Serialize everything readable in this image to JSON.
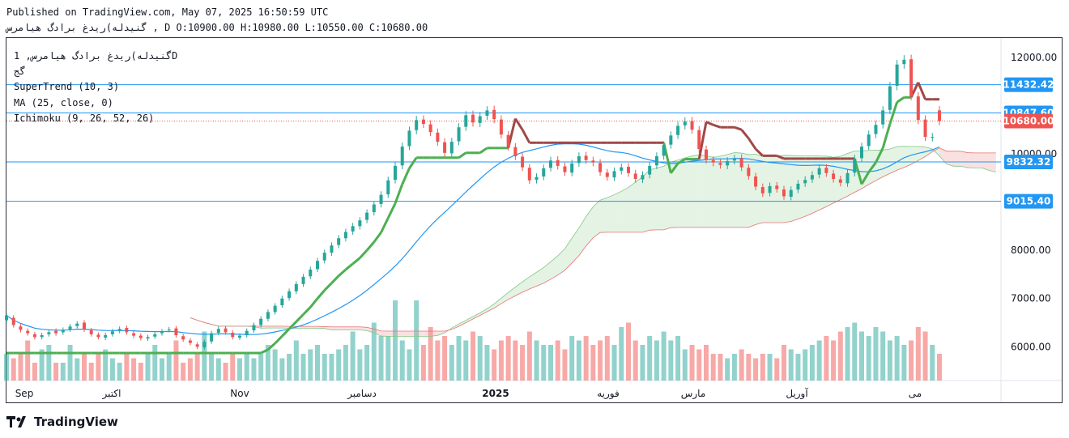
{
  "header": {
    "line1": "Published on TradingView.com, May 07, 2025 16:50:59 UTC",
    "line2": "گنیدله)ریدغ برادگ هیامرس , D O:10900.00 H:10980.00 L:10550.00 C:10680.00"
  },
  "legend": {
    "symbol": "گنیدله)ریدغ برادگ هیامرس, 1D",
    "symbol_sub": "گج",
    "supertrend": "SuperTrend (10, 3)",
    "ma": "MA (25, close, 0)",
    "ichimoku": "Ichimoku (9, 26, 52, 26)"
  },
  "brand": {
    "name": "TradingView"
  },
  "colors": {
    "up": "#26a69a",
    "down": "#ef5350",
    "st_up": "#4caf50",
    "st_down": "#a04848",
    "ma": "#2196f3",
    "hline": "#2196f3",
    "cloud_green": "#a5d6a7",
    "cloud_red": "#ef9a9a"
  },
  "chart_data": {
    "type": "candlestick",
    "title": "",
    "ylim": [
      5300,
      12400
    ],
    "y_ticks": [
      "12000.00",
      "10000.00",
      "8000.00",
      "7000.00",
      "6000.00"
    ],
    "x_ticks": [
      "Sep",
      "اکتبر",
      "Nov",
      "دسامبر",
      "2025",
      "فوریه",
      "مارس",
      "آوریل",
      "می"
    ],
    "horizontal_lines": [
      11432.42,
      10847.6,
      9832.32,
      9015.4
    ],
    "price_labels": [
      {
        "text": "11432.42",
        "value": 11432.42,
        "color": "#2196f3"
      },
      {
        "text": "10847.60",
        "value": 10847.6,
        "color": "#2196f3"
      },
      {
        "text": "10680.00",
        "value": 10680.0,
        "color": "#ef5350"
      },
      {
        "text": "9832.32",
        "value": 9832.32,
        "color": "#2196f3"
      },
      {
        "text": "9015.40",
        "value": 9015.4,
        "color": "#2196f3"
      }
    ],
    "close_line": 10680.0,
    "closes": [
      6650,
      6450,
      6350,
      6280,
      6200,
      6240,
      6300,
      6280,
      6350,
      6420,
      6480,
      6360,
      6260,
      6200,
      6240,
      6320,
      6370,
      6300,
      6230,
      6180,
      6200,
      6260,
      6320,
      6360,
      6240,
      6150,
      6080,
      6000,
      6100,
      6280,
      6370,
      6300,
      6200,
      6230,
      6330,
      6450,
      6580,
      6720,
      6850,
      7000,
      7150,
      7300,
      7450,
      7600,
      7780,
      7950,
      8100,
      8250,
      8380,
      8500,
      8620,
      8780,
      8950,
      9150,
      9450,
      9750,
      10150,
      10480,
      10700,
      10620,
      10450,
      10250,
      10020,
      10250,
      10550,
      10800,
      10650,
      10780,
      10900,
      10720,
      10400,
      10150,
      9950,
      9720,
      9450,
      9520,
      9700,
      9860,
      9750,
      9620,
      9800,
      9950,
      9870,
      9820,
      9620,
      9520,
      9640,
      9720,
      9600,
      9480,
      9560,
      9750,
      9950,
      10180,
      10380,
      10580,
      10670,
      10500,
      10100,
      9880,
      9820,
      9770,
      9850,
      9900,
      9720,
      9540,
      9320,
      9180,
      9330,
      9270,
      9120,
      9250,
      9380,
      9460,
      9560,
      9700,
      9600,
      9480,
      9400,
      9600,
      9900,
      10150,
      10400,
      10600,
      10900,
      11400,
      11850,
      11950,
      11200,
      10700,
      10350,
      10350,
      10680
    ],
    "opens": [
      6550,
      6600,
      6420,
      6330,
      6260,
      6200,
      6260,
      6330,
      6300,
      6360,
      6430,
      6500,
      6340,
      6250,
      6190,
      6260,
      6330,
      6390,
      6280,
      6230,
      6170,
      6210,
      6280,
      6350,
      6380,
      6220,
      6130,
      6050,
      5990,
      6110,
      6290,
      6380,
      6290,
      6190,
      6240,
      6340,
      6450,
      6580,
      6720,
      6860,
      7010,
      7150,
      7300,
      7460,
      7610,
      7790,
      7950,
      8110,
      8250,
      8390,
      8500,
      8630,
      8790,
      8960,
      9160,
      9460,
      9760,
      10160,
      10490,
      10710,
      10610,
      10440,
      10240,
      10010,
      10260,
      10560,
      10810,
      10640,
      10790,
      10910,
      10710,
      10390,
      10140,
      9940,
      9710,
      9460,
      9530,
      9710,
      9870,
      9740,
      9610,
      9810,
      9960,
      9860,
      9810,
      9610,
      9510,
      9650,
      9730,
      9590,
      9470,
      9570,
      9760,
      9960,
      10190,
      10390,
      10590,
      10680,
      10490,
      10090,
      9870,
      9810,
      9760,
      9860,
      9910,
      9710,
      9530,
      9310,
      9190,
      9340,
      9260,
      9110,
      9260,
      9390,
      9470,
      9570,
      9710,
      9590,
      9470,
      9390,
      9610,
      9910,
      10160,
      10410,
      10610,
      10910,
      11410,
      11860,
      11960,
      11190,
      10710,
      10340,
      10900
    ],
    "volume": [
      0.3,
      0.25,
      0.3,
      0.45,
      0.2,
      0.35,
      0.4,
      0.2,
      0.2,
      0.4,
      0.25,
      0.3,
      0.2,
      0.3,
      0.35,
      0.25,
      0.2,
      0.3,
      0.25,
      0.2,
      0.3,
      0.4,
      0.25,
      0.3,
      0.45,
      0.2,
      0.25,
      0.3,
      0.55,
      0.3,
      0.25,
      0.2,
      0.3,
      0.25,
      0.3,
      0.25,
      0.3,
      0.4,
      0.35,
      0.25,
      0.3,
      0.45,
      0.3,
      0.35,
      0.4,
      0.3,
      0.3,
      0.35,
      0.4,
      0.55,
      0.35,
      0.4,
      0.65,
      0.5,
      0.5,
      0.9,
      0.45,
      0.35,
      0.9,
      0.4,
      0.6,
      0.45,
      0.5,
      0.4,
      0.5,
      0.45,
      0.55,
      0.5,
      0.4,
      0.35,
      0.45,
      0.5,
      0.45,
      0.4,
      0.55,
      0.45,
      0.4,
      0.4,
      0.45,
      0.35,
      0.5,
      0.45,
      0.5,
      0.4,
      0.45,
      0.5,
      0.4,
      0.6,
      0.65,
      0.45,
      0.4,
      0.5,
      0.45,
      0.55,
      0.45,
      0.5,
      0.35,
      0.4,
      0.35,
      0.4,
      0.3,
      0.3,
      0.25,
      0.3,
      0.35,
      0.3,
      0.25,
      0.3,
      0.3,
      0.25,
      0.4,
      0.35,
      0.3,
      0.35,
      0.4,
      0.45,
      0.5,
      0.45,
      0.55,
      0.6,
      0.65,
      0.55,
      0.5,
      0.6,
      0.55,
      0.45,
      0.5,
      0.4,
      0.45,
      0.6,
      0.55,
      0.4,
      0.3
    ]
  }
}
